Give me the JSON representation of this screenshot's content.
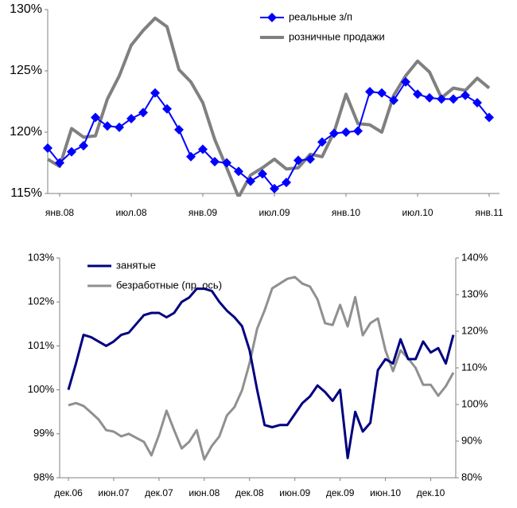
{
  "chart_data": [
    {
      "type": "line",
      "categories": [
        null,
        "янв.08",
        null,
        null,
        null,
        null,
        null,
        "июл.08",
        null,
        null,
        null,
        null,
        null,
        "янв.09",
        null,
        null,
        null,
        null,
        null,
        "июл.09",
        null,
        null,
        null,
        null,
        null,
        "янв.10",
        null,
        null,
        null,
        null,
        null,
        "июл.10",
        null,
        null,
        null,
        null,
        null,
        "янв.11"
      ],
      "ylim": [
        115,
        130
      ],
      "yticks": [
        {
          "value": 115,
          "label": "115%"
        },
        {
          "value": 120,
          "label": "120%"
        },
        {
          "value": 125,
          "label": "125%"
        },
        {
          "value": 130,
          "label": "130%"
        }
      ],
      "legend": "top-center",
      "series": [
        {
          "name": "реальные з/п",
          "color": "#0000ff",
          "marker": "diamond",
          "values": [
            118.7,
            117.5,
            118.4,
            118.9,
            121.2,
            120.5,
            120.4,
            121.1,
            121.6,
            123.2,
            121.9,
            120.2,
            118.0,
            118.6,
            117.6,
            117.5,
            116.8,
            116.0,
            116.6,
            115.4,
            115.9,
            117.7,
            117.8,
            119.2,
            119.9,
            120.0,
            120.1,
            123.3,
            123.2,
            122.6,
            124.1,
            123.1,
            122.8,
            122.7,
            122.7,
            123.0,
            122.4,
            121.2
          ]
        },
        {
          "name": "розничные продажи",
          "color": "#808080",
          "values": [
            117.8,
            117.2,
            120.3,
            119.6,
            119.7,
            122.7,
            124.6,
            127.1,
            128.3,
            129.3,
            128.6,
            125.1,
            124.1,
            122.4,
            119.4,
            117.1,
            114.7,
            116.5,
            117.1,
            117.8,
            117.0,
            117.1,
            118.2,
            118.0,
            120.0,
            123.1,
            120.7,
            120.6,
            120.0,
            123.0,
            124.6,
            125.8,
            124.9,
            122.8,
            123.6,
            123.4,
            124.4,
            123.6
          ]
        }
      ]
    },
    {
      "type": "line",
      "categories": [
        "дек.06",
        null,
        null,
        null,
        null,
        null,
        "июн.07",
        null,
        null,
        null,
        null,
        null,
        "дек.07",
        null,
        null,
        null,
        null,
        null,
        "июн.08",
        null,
        null,
        null,
        null,
        null,
        "дек.08",
        null,
        null,
        null,
        null,
        null,
        "июн.09",
        null,
        null,
        null,
        null,
        null,
        "дек.09",
        null,
        null,
        null,
        null,
        null,
        "июн.10",
        null,
        null,
        null,
        null,
        null,
        "дек.10",
        null,
        null,
        null
      ],
      "ylim": [
        98,
        103
      ],
      "yticks": [
        {
          "value": 98,
          "label": "98%"
        },
        {
          "value": 99,
          "label": "99%"
        },
        {
          "value": 100,
          "label": "100%"
        },
        {
          "value": 101,
          "label": "101%"
        },
        {
          "value": 102,
          "label": "102%"
        },
        {
          "value": 103,
          "label": "103%"
        }
      ],
      "y2lim": [
        80,
        140
      ],
      "y2ticks": [
        {
          "value": 80,
          "label": "80%"
        },
        {
          "value": 90,
          "label": "90%"
        },
        {
          "value": 100,
          "label": "100%"
        },
        {
          "value": 110,
          "label": "110%"
        },
        {
          "value": 120,
          "label": "120%"
        },
        {
          "value": 130,
          "label": "130%"
        },
        {
          "value": 140,
          "label": "140%"
        }
      ],
      "legend": "top-left",
      "series": [
        {
          "name": "занятые",
          "color": "#000080",
          "values": [
            100.0,
            100.6,
            101.25,
            101.2,
            101.1,
            101.0,
            101.1,
            101.25,
            101.3,
            101.5,
            101.7,
            101.75,
            101.75,
            101.65,
            101.75,
            102.0,
            102.1,
            102.3,
            102.3,
            102.25,
            102.0,
            101.8,
            101.65,
            101.45,
            100.9,
            100.0,
            99.2,
            99.15,
            99.2,
            99.2,
            99.45,
            99.7,
            99.85,
            100.1,
            99.95,
            99.75,
            100.0,
            98.45,
            99.5,
            99.05,
            99.25,
            100.45,
            100.7,
            100.6,
            101.15,
            100.7,
            100.7,
            101.1,
            100.85,
            100.95,
            100.6,
            101.25
          ]
        },
        {
          "name": "безработные (пр. ось)",
          "color": "#909090",
          "axis": "y2",
          "values": [
            99.8,
            100.4,
            99.6,
            97.8,
            95.9,
            93.0,
            92.6,
            91.3,
            92.0,
            90.9,
            89.8,
            86.1,
            91.7,
            98.3,
            93.0,
            88.0,
            89.8,
            93.0,
            85.0,
            88.7,
            91.3,
            97.0,
            99.3,
            103.9,
            111.3,
            120.7,
            125.7,
            131.7,
            133.0,
            134.3,
            134.8,
            133.0,
            132.2,
            128.7,
            122.2,
            121.7,
            127.2,
            121.3,
            129.3,
            118.9,
            122.2,
            123.5,
            114.8,
            109.1,
            114.8,
            112.6,
            110.0,
            105.4,
            105.4,
            102.4,
            105.0,
            108.7
          ]
        }
      ]
    }
  ]
}
